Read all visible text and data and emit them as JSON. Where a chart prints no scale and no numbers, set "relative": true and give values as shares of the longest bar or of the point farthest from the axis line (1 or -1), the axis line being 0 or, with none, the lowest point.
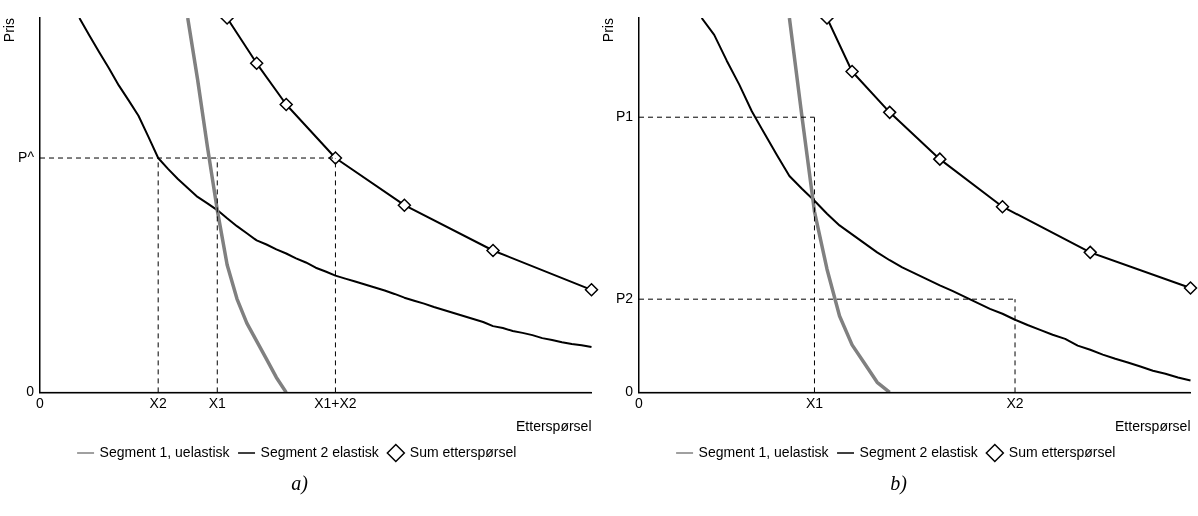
{
  "chart_data": [
    {
      "type": "line",
      "relative": true,
      "xlabel": "Etterspørsel",
      "ylabel": "Pris",
      "legend": "bottom",
      "grid": false,
      "annotations": [
        "a)"
      ],
      "categories": [
        "0",
        null,
        null,
        null,
        null,
        null,
        null,
        null,
        null,
        null,
        null,
        null,
        "X2",
        null,
        null,
        null,
        null,
        null,
        "X1",
        null,
        null,
        null,
        null,
        null,
        null,
        null,
        null,
        null,
        null,
        null,
        "X1+X2",
        null,
        null,
        null,
        null,
        null,
        null,
        null,
        null,
        null,
        null,
        null,
        null,
        null,
        null,
        null,
        null,
        null,
        null,
        null,
        null,
        null,
        null,
        null,
        null,
        null,
        null
      ],
      "ref_lines": [
        {
          "axis": "y",
          "value": 0.626,
          "label": "P^",
          "line_style": "dashed"
        },
        {
          "axis": "x",
          "value": "X2",
          "line_style": "dashed"
        },
        {
          "axis": "x",
          "value": "X1",
          "line_style": "dashed"
        },
        {
          "axis": "x",
          "value": "X1+X2",
          "line_style": "dashed"
        },
        {
          "axis": "y",
          "value": 0,
          "label": "0"
        }
      ],
      "series": [
        {
          "name": "Segment 1, uelastisk",
          "color": "#808080",
          "marker": "none",
          "values": [
            null,
            null,
            null,
            null,
            null,
            null,
            null,
            null,
            null,
            null,
            null,
            null,
            null,
            null,
            null,
            1,
            0.836,
            0.656,
            0.487,
            0.341,
            0.25,
            0.185,
            0.137,
            0.089,
            0.04,
            0,
            null,
            null,
            null,
            null,
            null,
            null,
            null,
            null,
            null,
            null,
            null,
            null,
            null,
            null,
            null,
            null,
            null,
            null,
            null,
            null,
            null,
            null,
            null,
            null,
            null,
            null,
            null,
            null,
            null,
            null,
            null
          ]
        },
        {
          "name": "Segment 2 elastisk",
          "color": "#000000",
          "marker": "none",
          "values": [
            null,
            null,
            null,
            null,
            1,
            0.954,
            0.909,
            0.866,
            0.82,
            0.78,
            0.739,
            0.683,
            0.626,
            0.597,
            0.57,
            0.546,
            0.522,
            0.505,
            0.487,
            0.465,
            0.444,
            0.425,
            0.406,
            0.395,
            0.382,
            0.371,
            0.358,
            0.347,
            0.333,
            0.323,
            0.312,
            0.304,
            0.296,
            0.288,
            0.28,
            0.272,
            0.263,
            0.253,
            0.245,
            0.237,
            0.228,
            0.22,
            0.212,
            0.204,
            0.196,
            0.188,
            0.177,
            0.172,
            0.164,
            0.159,
            0.153,
            0.145,
            0.14,
            0.134,
            0.129,
            0.126,
            0.121
          ]
        },
        {
          "name": "Sum etterspørsel",
          "color": "#000000",
          "marker": "diamond",
          "values": [
            null,
            null,
            null,
            null,
            null,
            null,
            null,
            null,
            null,
            null,
            null,
            null,
            null,
            null,
            null,
            null,
            null,
            null,
            null,
            1,
            null,
            null,
            0.879,
            null,
            null,
            0.769,
            null,
            null,
            null,
            null,
            0.626,
            null,
            null,
            null,
            null,
            null,
            null,
            0.5,
            null,
            null,
            null,
            null,
            null,
            null,
            null,
            null,
            0.379,
            null,
            null,
            null,
            null,
            null,
            null,
            null,
            null,
            null,
            0.274
          ]
        }
      ]
    },
    {
      "type": "line",
      "relative": true,
      "xlabel": "Etterspørsel",
      "ylabel": "Pris",
      "legend": "bottom",
      "grid": false,
      "annotations": [
        "b)"
      ],
      "categories": [
        "0",
        null,
        null,
        null,
        null,
        null,
        null,
        null,
        null,
        null,
        null,
        null,
        null,
        null,
        "X1",
        null,
        null,
        null,
        null,
        null,
        null,
        null,
        null,
        null,
        null,
        null,
        null,
        null,
        null,
        null,
        "X2",
        null,
        null,
        null,
        null,
        null,
        null,
        null,
        null,
        null,
        null,
        null,
        null,
        null,
        null
      ],
      "ref_lines": [
        {
          "axis": "y",
          "value": 0.735,
          "label": "P1",
          "line_style": "dashed"
        },
        {
          "axis": "x",
          "value": "X1",
          "line_style": "dashed"
        },
        {
          "axis": "y",
          "value": 0.249,
          "label": "P2",
          "line_style": "dashed"
        },
        {
          "axis": "x",
          "value": "X2",
          "line_style": "dashed"
        },
        {
          "axis": "y",
          "value": 0,
          "label": "0"
        }
      ],
      "series": [
        {
          "name": "Segment 1, uelastisk",
          "color": "#808080",
          "marker": "none",
          "values": [
            null,
            null,
            null,
            null,
            null,
            null,
            null,
            null,
            null,
            null,
            null,
            null,
            1,
            0.737,
            0.483,
            0.329,
            0.204,
            0.127,
            0.077,
            0.027,
            0,
            null,
            null,
            null,
            null,
            null,
            null,
            null,
            null,
            null,
            null,
            null,
            null,
            null,
            null,
            null,
            null,
            null,
            null,
            null,
            null,
            null,
            null,
            null,
            null
          ]
        },
        {
          "name": "Segment 2 elastisk",
          "color": "#000000",
          "marker": "none",
          "values": [
            null,
            null,
            null,
            null,
            null,
            1,
            0.955,
            0.886,
            0.822,
            0.751,
            0.692,
            0.634,
            0.578,
            0.544,
            0.512,
            0.477,
            0.446,
            0.422,
            0.398,
            0.374,
            0.353,
            0.334,
            0.318,
            0.302,
            0.286,
            0.271,
            0.255,
            0.239,
            0.223,
            0.21,
            0.194,
            0.18,
            0.167,
            0.154,
            0.143,
            0.125,
            0.114,
            0.101,
            0.09,
            0.08,
            0.069,
            0.058,
            0.05,
            0.04,
            0.032
          ]
        },
        {
          "name": "Sum etterspørsel",
          "color": "#000000",
          "marker": "diamond",
          "values": [
            null,
            null,
            null,
            null,
            null,
            null,
            null,
            null,
            null,
            null,
            null,
            null,
            null,
            null,
            null,
            1,
            null,
            0.857,
            null,
            null,
            0.748,
            null,
            null,
            null,
            0.623,
            null,
            null,
            null,
            null,
            0.496,
            null,
            null,
            null,
            null,
            null,
            null,
            0.374,
            null,
            null,
            null,
            null,
            null,
            null,
            null,
            0.279
          ]
        }
      ]
    }
  ]
}
